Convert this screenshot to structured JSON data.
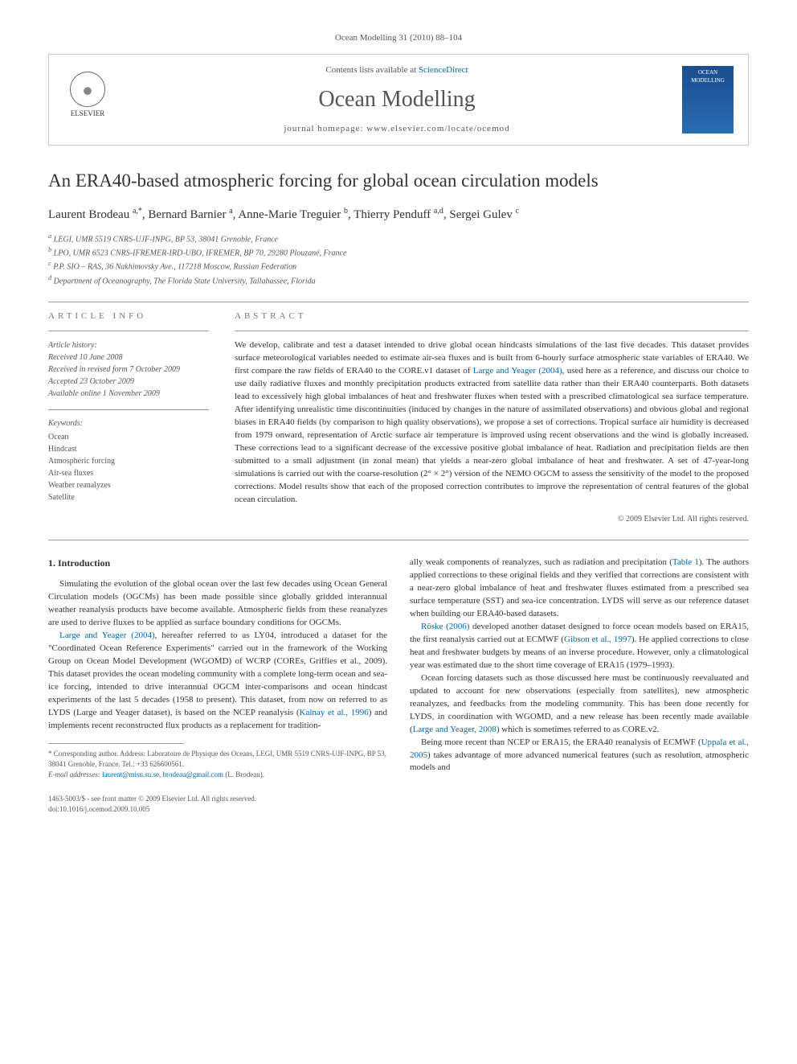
{
  "citation": "Ocean Modelling 31 (2010) 88–104",
  "header": {
    "contents_prefix": "Contents lists available at ",
    "contents_link": "ScienceDirect",
    "journal": "Ocean Modelling",
    "homepage_prefix": "journal homepage: ",
    "homepage_url": "www.elsevier.com/locate/ocemod",
    "publisher_name": "ELSEVIER",
    "cover_label": "OCEAN MODELLING"
  },
  "title": "An ERA40-based atmospheric forcing for global ocean circulation models",
  "authors_html": "Laurent Brodeau <sup>a,*</sup>, Bernard Barnier <sup>a</sup>, Anne-Marie Treguier <sup>b</sup>, Thierry Penduff <sup>a,d</sup>, Sergei Gulev <sup>c</sup>",
  "affiliations": [
    "a LEGI, UMR 5519 CNRS-UJF-INPG, BP 53, 38041 Grenoble, France",
    "b LPO, UMR 6523 CNRS-IFREMER-IRD-UBO, IFREMER, BP 70, 29280 Plouzané, France",
    "c P.P. SIO – RAS, 36 Nakhimovsky Ave., 117218 Moscow, Russian Federation",
    "d Department of Oceanography, The Florida State University, Tallahassee, Florida"
  ],
  "info_header": "ARTICLE INFO",
  "abstract_header": "ABSTRACT",
  "history_label": "Article history:",
  "history": [
    "Received 10 June 2008",
    "Received in revised form 7 October 2009",
    "Accepted 23 October 2009",
    "Available online 1 November 2009"
  ],
  "keywords_label": "Keywords:",
  "keywords": [
    "Ocean",
    "Hindcast",
    "Atmospheric forcing",
    "Air-sea fluxes",
    "Weather reanalyzes",
    "Satellite"
  ],
  "abstract": "We develop, calibrate and test a dataset intended to drive global ocean hindcasts simulations of the last five decades. This dataset provides surface meteorological variables needed to estimate air-sea fluxes and is built from 6-hourly surface atmospheric state variables of ERA40. We first compare the raw fields of ERA40 to the CORE.v1 dataset of Large and Yeager (2004), used here as a reference, and discuss our choice to use daily radiative fluxes and monthly precipitation products extracted from satellite data rather than their ERA40 counterparts. Both datasets lead to excessively high global imbalances of heat and freshwater fluxes when tested with a prescribed climatological sea surface temperature. After identifying unrealistic time discontinuities (induced by changes in the nature of assimilated observations) and obvious global and regional biases in ERA40 fields (by comparison to high quality observations), we propose a set of corrections. Tropical surface air humidity is decreased from 1979 onward, representation of Arctic surface air temperature is improved using recent observations and the wind is globally increased. These corrections lead to a significant decrease of the excessive positive global imbalance of heat. Radiation and precipitation fields are then submitted to a small adjustment (in zonal mean) that yields a near-zero global imbalance of heat and freshwater. A set of 47-year-long simulations is carried out with the coarse-resolution (2° × 2°) version of the NEMO OGCM to assess the sensitivity of the model to the proposed corrections. Model results show that each of the proposed correction contributes to improve the representation of central features of the global ocean circulation.",
  "copyright": "© 2009 Elsevier Ltd. All rights reserved.",
  "section1_heading": "1. Introduction",
  "col_left": {
    "p1": "Simulating the evolution of the global ocean over the last few decades using Ocean General Circulation models (OGCMs) has been made possible since globally gridded interannual weather reanalysis products have become available. Atmospheric fields from these reanalyzes are used to derive fluxes to be applied as surface boundary conditions for OGCMs.",
    "p2": "Large and Yeager (2004), hereafter referred to as LY04, introduced a dataset for the \"Coordinated Ocean Reference Experiments\" carried out in the framework of the Working Group on Ocean Model Development (WGOMD) of WCRP (COREs, Griffies et al., 2009). This dataset provides the ocean modeling community with a complete long-term ocean and sea-ice forcing, intended to drive interannual OGCM inter-comparisons and ocean hindcast experiments of the last 5 decades (1958 to present). This dataset, from now on referred to as LYDS (Large and Yeager dataset), is based on the NCEP reanalysis (Kalnay et al., 1996) and implements recent reconstructed flux products as a replacement for tradition-"
  },
  "col_right": {
    "p1": "ally weak components of reanalyzes, such as radiation and precipitation (Table 1). The authors applied corrections to these original fields and they verified that corrections are consistent with a near-zero global imbalance of heat and freshwater fluxes estimated from a prescribed sea surface temperature (SST) and sea-ice concentration. LYDS will serve as our reference dataset when building our ERA40-based datasets.",
    "p2": "Röske (2006) developed another dataset designed to force ocean models based on ERA15, the first reanalysis carried out at ECMWF (Gibson et al., 1997). He applied corrections to close heat and freshwater budgets by means of an inverse procedure. However, only a climatological year was estimated due to the short time coverage of ERA15 (1979–1993).",
    "p3": "Ocean forcing datasets such as those discussed here must be continuously reevaluated and updated to account for new observations (especially from satellites), new atmospheric reanalyzes, and feedbacks from the modeling community. This has been done recently for LYDS, in coordination with WGOMD, and a new release has been recently made available (Large and Yeager, 2008) which is sometimes referred to as CORE.v2.",
    "p4": "Being more recent than NCEP or ERA15, the ERA40 reanalysis of ECMWF (Uppala et al., 2005) takes advantage of more advanced numerical features (such as resolution, atmospheric models and"
  },
  "footnote": {
    "star": "* Corresponding author. Address: Laboratoire de Physique des Oceans, LEGI, UMR 5519 CNRS-UJF-INPG, BP 53, 38041 Grenoble, France. Tel.: +33 626600561.",
    "email_label": "E-mail addresses: ",
    "emails": "laurent@misu.su.se, brodeau@gmail.com",
    "email_suffix": " (L. Brodeau)."
  },
  "footer": {
    "line1": "1463-5003/$ - see front matter © 2009 Elsevier Ltd. All rights reserved.",
    "line2": "doi:10.1016/j.ocemod.2009.10.005"
  },
  "colors": {
    "link": "#0066aa",
    "text": "#333333",
    "muted": "#555555",
    "border": "#cccccc"
  }
}
